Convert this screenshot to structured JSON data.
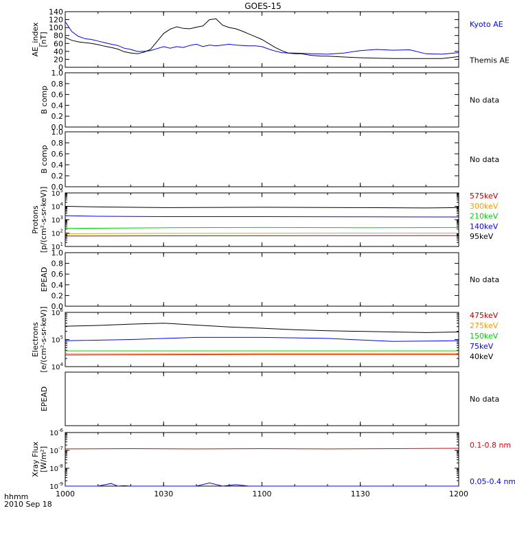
{
  "title": "GOES-15",
  "footer": {
    "unit_label": "hhmm",
    "date_label": "2010 Sep 18"
  },
  "colors": {
    "black": "#000000",
    "blue": "#0000ff",
    "green": "#00d000",
    "orange": "#ff9900",
    "darkred": "#b30000",
    "red": "#dd0000"
  },
  "chart_data": [
    {
      "id": "ae",
      "type": "line",
      "ylabel": [
        "AE_index",
        "[nT]"
      ],
      "ylim": [
        0,
        140
      ],
      "yticks": [
        "0",
        "20",
        "40",
        "60",
        "80",
        "100",
        "120",
        "140"
      ],
      "xlim": [
        0,
        120
      ],
      "series": [
        {
          "name": "Kyoto AE",
          "color": "#0000ff",
          "x": [
            0,
            2,
            4,
            6,
            8,
            10,
            12,
            14,
            16,
            18,
            20,
            22,
            24,
            26,
            28,
            30,
            32,
            34,
            36,
            38,
            40,
            42,
            44,
            46,
            48,
            50,
            52,
            54,
            56,
            58,
            60,
            62,
            64,
            66,
            68,
            70,
            75,
            80,
            85,
            90,
            95,
            100,
            105,
            110,
            115,
            120
          ],
          "y": [
            115,
            90,
            78,
            72,
            70,
            66,
            62,
            58,
            55,
            48,
            45,
            40,
            40,
            42,
            47,
            52,
            48,
            52,
            50,
            55,
            58,
            52,
            56,
            54,
            56,
            58,
            56,
            55,
            54,
            54,
            52,
            46,
            41,
            37,
            36,
            36,
            34,
            33,
            36,
            42,
            45,
            43,
            44,
            34,
            33,
            37
          ]
        },
        {
          "name": "Themis AE",
          "color": "#000000",
          "x": [
            0,
            2,
            4,
            6,
            8,
            10,
            12,
            14,
            16,
            18,
            20,
            22,
            24,
            26,
            28,
            30,
            32,
            34,
            36,
            38,
            40,
            42,
            44,
            46,
            48,
            50,
            52,
            54,
            56,
            58,
            60,
            62,
            64,
            66,
            68,
            70,
            72,
            75,
            78,
            80,
            85,
            90,
            95,
            100,
            105,
            110,
            115,
            120
          ],
          "y": [
            75,
            68,
            64,
            62,
            60,
            57,
            53,
            50,
            46,
            39,
            36,
            34,
            38,
            45,
            65,
            85,
            96,
            102,
            98,
            97,
            101,
            104,
            120,
            122,
            106,
            100,
            97,
            91,
            84,
            77,
            70,
            60,
            50,
            42,
            36,
            34,
            34,
            30,
            28,
            28,
            26,
            24,
            23,
            22,
            22,
            22,
            22,
            27
          ]
        }
      ],
      "legend": [
        "Kyoto AE",
        "Themis AE"
      ]
    },
    {
      "id": "bcomp1",
      "type": "line",
      "ylabel": [
        "B comp"
      ],
      "ylim": [
        0,
        1
      ],
      "yticks": [
        "0.0",
        "0.2",
        "0.4",
        "0.6",
        "0.8",
        "1.0"
      ],
      "series": [],
      "legend": [
        "No data"
      ]
    },
    {
      "id": "bcomp2",
      "type": "line",
      "ylabel": [
        "B comp"
      ],
      "ylim": [
        0,
        1
      ],
      "yticks": [
        "0.0",
        "0.2",
        "0.4",
        "0.6",
        "0.8",
        "1.0"
      ],
      "series": [],
      "legend": [
        "No data"
      ]
    },
    {
      "id": "protons",
      "type": "line",
      "log": true,
      "ylabel": [
        "Protons",
        "[p/(cm²-s-sr-keV)]"
      ],
      "ylim_exp": [
        1,
        5
      ],
      "yticks_exp": [
        1,
        2,
        3,
        4,
        5
      ],
      "series": [
        {
          "name": "575keV",
          "color": "#b30000",
          "x": [
            0,
            30,
            60,
            90,
            120
          ],
          "y": [
            60,
            62,
            63,
            64,
            65
          ]
        },
        {
          "name": "300keV",
          "color": "#ff9900",
          "x": [
            0,
            30,
            60,
            90,
            120
          ],
          "y": [
            90,
            95,
            98,
            100,
            100
          ]
        },
        {
          "name": "210keV",
          "color": "#00d000",
          "x": [
            0,
            30,
            60,
            90,
            120
          ],
          "y": [
            220,
            250,
            260,
            250,
            260
          ]
        },
        {
          "name": "140keV",
          "color": "#0000ff",
          "x": [
            0,
            10,
            30,
            60,
            90,
            120
          ],
          "y": [
            2000,
            1800,
            1700,
            1700,
            1650,
            1600
          ]
        },
        {
          "name": "95keV",
          "color": "#000000",
          "x": [
            0,
            10,
            30,
            60,
            90,
            110,
            120
          ],
          "y": [
            10000,
            9000,
            8000,
            8500,
            8000,
            7500,
            8000
          ]
        }
      ],
      "legend": [
        "575keV",
        "300keV",
        "210keV",
        "140keV",
        "95keV"
      ]
    },
    {
      "id": "epead1",
      "type": "line",
      "ylabel": [
        "EPEAD"
      ],
      "ylim": [
        0,
        1
      ],
      "yticks": [
        "0.0",
        "0.2",
        "0.4",
        "0.6",
        "0.8",
        "1.0"
      ],
      "series": [],
      "legend": [
        "No data"
      ]
    },
    {
      "id": "electrons",
      "type": "line",
      "log": true,
      "ylabel": [
        "Electrons",
        "[e/(cm²-s-sr-keV)]"
      ],
      "ylim_exp": [
        4,
        6
      ],
      "yticks_exp": [
        4,
        5,
        6
      ],
      "series": [
        {
          "name": "475keV",
          "color": "#b30000",
          "x": [
            0,
            60,
            120
          ],
          "y": [
            27000,
            28000,
            28000
          ]
        },
        {
          "name": "275keV",
          "color": "#ff9900",
          "x": [
            0,
            60,
            120
          ],
          "y": [
            30000,
            31000,
            31000
          ]
        },
        {
          "name": "150keV",
          "color": "#00d000",
          "x": [
            0,
            60,
            120
          ],
          "y": [
            38000,
            38000,
            38000
          ]
        },
        {
          "name": "75keV",
          "color": "#0000ff",
          "x": [
            0,
            20,
            40,
            60,
            80,
            100,
            120
          ],
          "y": [
            90000,
            100000,
            120000,
            120000,
            110000,
            85000,
            90000
          ]
        },
        {
          "name": "40keV",
          "color": "#000000",
          "x": [
            0,
            10,
            20,
            30,
            40,
            50,
            60,
            70,
            80,
            90,
            100,
            110,
            120
          ],
          "y": [
            310000,
            330000,
            370000,
            400000,
            340000,
            290000,
            260000,
            230000,
            210000,
            200000,
            190000,
            180000,
            190000
          ]
        }
      ],
      "legend": [
        "475keV",
        "275keV",
        "150keV",
        "75keV",
        "40keV"
      ]
    },
    {
      "id": "epead2",
      "type": "line",
      "ylabel": [
        "EPEAD"
      ],
      "ylim": [
        0,
        1
      ],
      "yticks": [],
      "series": [],
      "legend": [
        "No data"
      ]
    },
    {
      "id": "xray",
      "type": "line",
      "log": true,
      "ylabel": [
        "Xray Flux",
        "[W/m²]"
      ],
      "ylim_exp": [
        -9,
        -6
      ],
      "yticks_exp": [
        -9,
        -8,
        -7,
        -6
      ],
      "series": [
        {
          "name": "0.1-0.8 nm",
          "color": "#dd0000",
          "x": [
            0,
            20,
            40,
            60,
            80,
            100,
            120
          ],
          "y": [
            1.2e-07,
            1.25e-07,
            1.2e-07,
            1.25e-07,
            1.2e-07,
            1.25e-07,
            1.3e-07
          ]
        },
        {
          "name": "0.05-0.4 nm",
          "color": "#0000ff",
          "x": [
            0,
            10,
            14,
            16,
            18,
            20,
            40,
            44,
            48,
            52,
            56,
            60,
            80,
            100,
            120
          ],
          "y": [
            1e-09,
            1e-09,
            1.4e-09,
            1e-09,
            1.05e-09,
            1e-09,
            1e-09,
            1.5e-09,
            1e-09,
            1.2e-09,
            1e-09,
            1e-09,
            1e-09,
            1e-09,
            1e-09
          ]
        }
      ],
      "legend": [
        "0.1-0.8 nm",
        "0.05-0.4 nm"
      ]
    }
  ],
  "xaxis": {
    "xlim": [
      0,
      120
    ],
    "ticks": [
      0,
      30,
      60,
      90,
      120
    ],
    "ticklabels": [
      "1000",
      "1030",
      "1100",
      "1130",
      "1200"
    ]
  }
}
